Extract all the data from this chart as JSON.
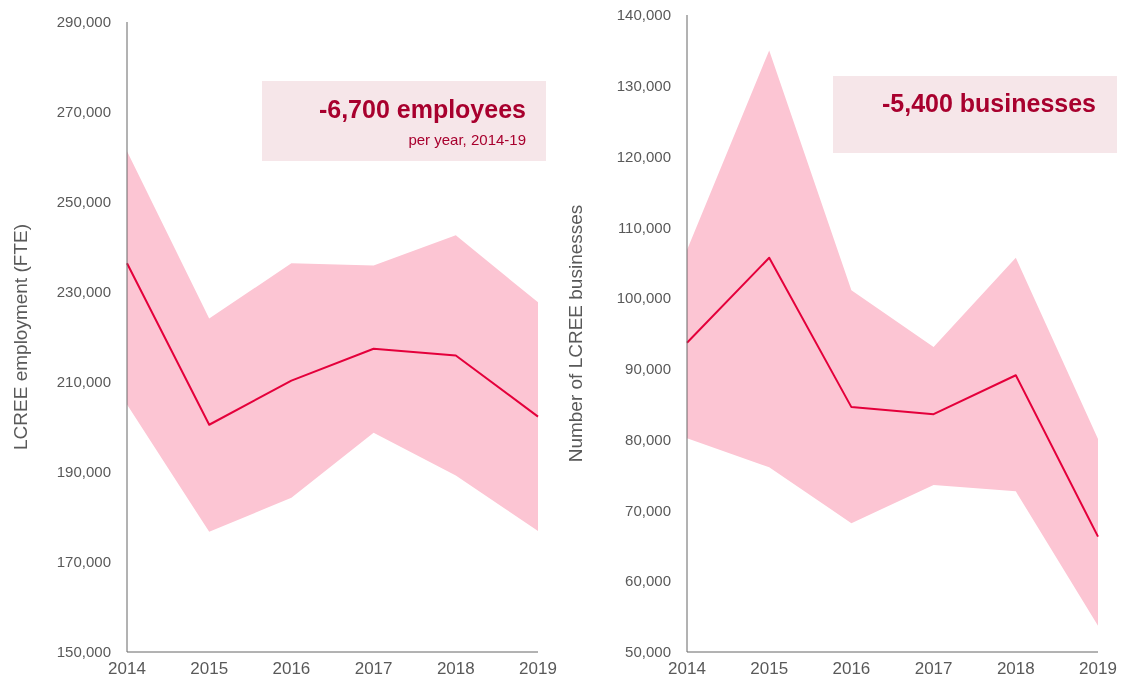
{
  "chart_data": [
    {
      "type": "line",
      "ylabel": "LCREE employment (FTE)",
      "annotations": [
        "-6,700 employees",
        "per year, 2014-19"
      ],
      "x": [
        2014,
        2015,
        2016,
        2017,
        2018,
        2019
      ],
      "xlim": [
        2014,
        2019
      ],
      "xticks": [
        2014,
        2015,
        2016,
        2017,
        2018,
        2019
      ],
      "ylim": [
        150000,
        290000
      ],
      "yticks": [
        {
          "value": 150000,
          "label": "150,000"
        },
        {
          "value": 170000,
          "label": "170,000"
        },
        {
          "value": 190000,
          "label": "190,000"
        },
        {
          "value": 210000,
          "label": "210,000"
        },
        {
          "value": 230000,
          "label": "230,000"
        },
        {
          "value": 250000,
          "label": "250,000"
        },
        {
          "value": 270000,
          "label": "270,000"
        },
        {
          "value": 290000,
          "label": "290,000"
        }
      ],
      "grid": false,
      "series": [
        {
          "color": "#e4003b",
          "values": [
            236400,
            200500,
            210300,
            217400,
            215900,
            202300
          ],
          "lower": [
            205000,
            176700,
            184300,
            198700,
            189200,
            176900
          ],
          "upper": [
            261300,
            224100,
            236400,
            235900,
            242600,
            227700
          ]
        }
      ]
    },
    {
      "type": "line",
      "ylabel": "Number of LCREE businesses",
      "annotations": [
        "-5,400 businesses"
      ],
      "x": [
        2014,
        2015,
        2016,
        2017,
        2018,
        2019
      ],
      "xlim": [
        2014,
        2019
      ],
      "xticks": [
        2014,
        2015,
        2016,
        2017,
        2018,
        2019
      ],
      "ylim": [
        50000,
        140000
      ],
      "yticks": [
        {
          "value": 50000,
          "label": "50,000"
        },
        {
          "value": 60000,
          "label": "60,000"
        },
        {
          "value": 70000,
          "label": "70,000"
        },
        {
          "value": 80000,
          "label": "80,000"
        },
        {
          "value": 90000,
          "label": "90,000"
        },
        {
          "value": 100000,
          "label": "100,000"
        },
        {
          "value": 110000,
          "label": "110,000"
        },
        {
          "value": 120000,
          "label": "120,000"
        },
        {
          "value": 130000,
          "label": "130,000"
        },
        {
          "value": 140000,
          "label": "140,000"
        }
      ],
      "grid": false,
      "series": [
        {
          "color": "#e4003b",
          "values": [
            93700,
            105700,
            84600,
            83600,
            89100,
            66300
          ],
          "lower": [
            80200,
            76100,
            68200,
            73600,
            72700,
            53700
          ],
          "upper": [
            106800,
            135000,
            101100,
            93100,
            105700,
            80100
          ]
        }
      ]
    }
  ]
}
